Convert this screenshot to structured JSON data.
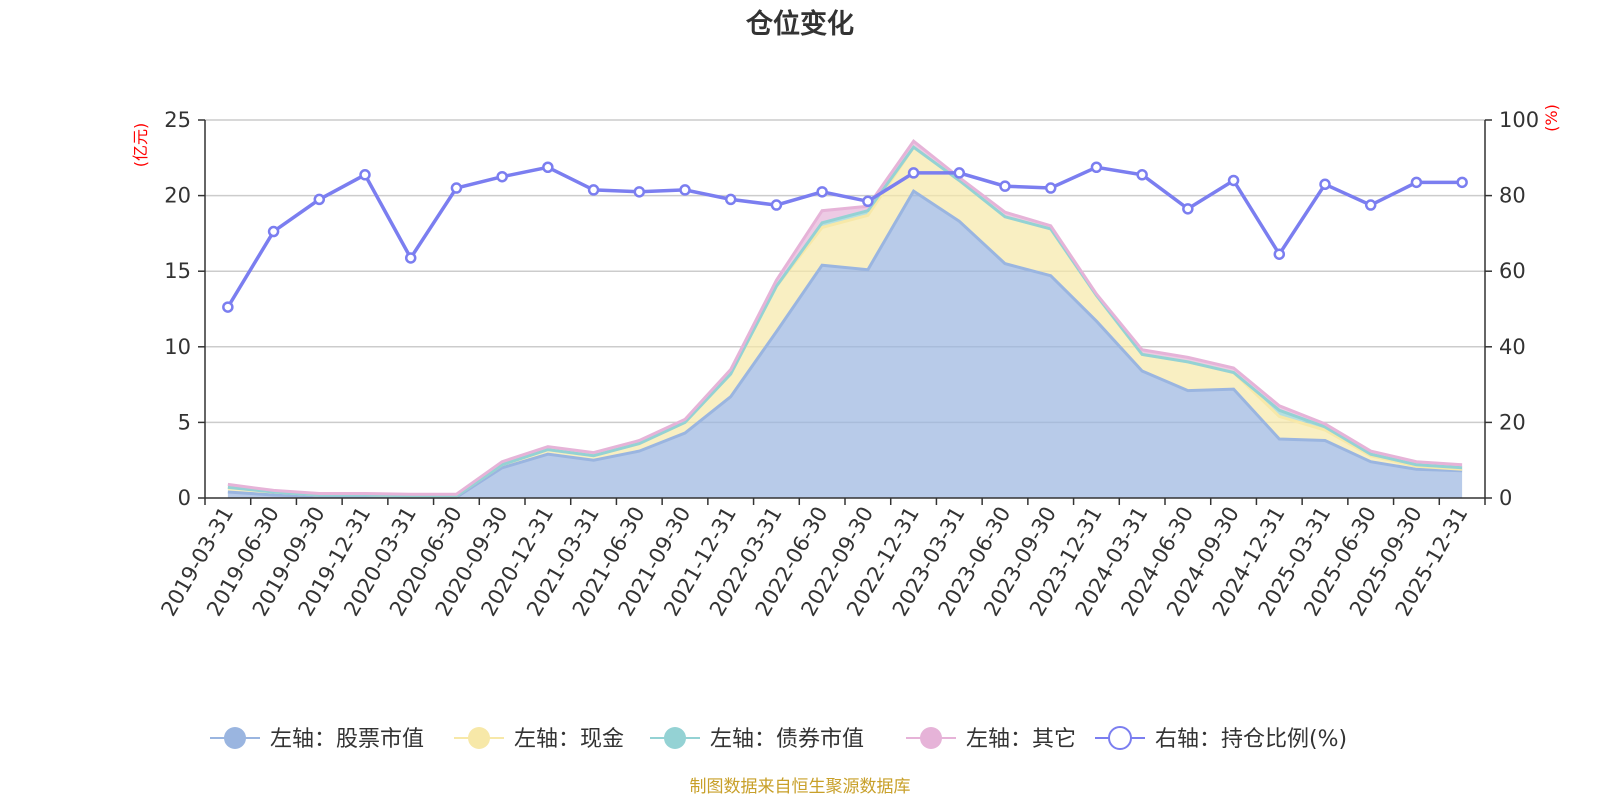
{
  "chart_data": {
    "type": "area",
    "title": "仓位变化",
    "left_axis_unit": "(亿元)",
    "right_axis_unit": "(%)",
    "left_ylim": [
      0,
      25
    ],
    "left_ticks": [
      "0",
      "5",
      "10",
      "15",
      "20",
      "25"
    ],
    "right_ylim": [
      0,
      100
    ],
    "right_ticks": [
      "0",
      "20",
      "40",
      "60",
      "80",
      "100"
    ],
    "categories": [
      "2019-03-31",
      "2019-06-30",
      "2019-09-30",
      "2019-12-31",
      "2020-03-31",
      "2020-06-30",
      "2020-09-30",
      "2020-12-31",
      "2021-03-31",
      "2021-06-30",
      "2021-09-30",
      "2021-12-31",
      "2022-03-31",
      "2022-06-30",
      "2022-09-30",
      "2022-12-31",
      "2023-03-31",
      "2023-06-30",
      "2023-09-30",
      "2023-12-31",
      "2024-03-31",
      "2024-06-30",
      "2024-09-30",
      "2024-12-31",
      "2025-03-31",
      "2025-06-30",
      "2025-09-30",
      "2025-12-31"
    ],
    "series": [
      {
        "name": "左轴：股票市值",
        "axis": "left",
        "color": "#9ab5e0",
        "values": [
          0.4,
          0.2,
          0.1,
          0.1,
          0.05,
          0.05,
          2.0,
          2.9,
          2.5,
          3.1,
          4.3,
          6.7,
          11.0,
          15.4,
          15.1,
          20.3,
          18.3,
          15.5,
          14.7,
          11.7,
          8.4,
          7.1,
          7.2,
          3.9,
          3.8,
          2.4,
          1.9,
          1.8
        ]
      },
      {
        "name": "左轴：现金",
        "axis": "left",
        "color": "#f7e8a8",
        "values": [
          0.3,
          0.2,
          0.1,
          0.1,
          0.1,
          0.1,
          0.2,
          0.3,
          0.3,
          0.5,
          0.7,
          1.5,
          3.0,
          2.5,
          3.6,
          2.9,
          2.7,
          3.1,
          3.1,
          1.7,
          1.1,
          1.9,
          1.1,
          1.5,
          0.7,
          0.4,
          0.2,
          0.1
        ]
      },
      {
        "name": "左轴：债券市值",
        "axis": "left",
        "color": "#94d2d4",
        "values": [
          0,
          0,
          0,
          0,
          0,
          0,
          0,
          0,
          0,
          0,
          0,
          0,
          0,
          0.3,
          0.3,
          0,
          0,
          0,
          0,
          0,
          0,
          0,
          0,
          0.4,
          0.2,
          0.1,
          0.1,
          0.1
        ]
      },
      {
        "name": "左轴：其它",
        "axis": "left",
        "color": "#e6b3d8",
        "values": [
          0.2,
          0.1,
          0.1,
          0.1,
          0.1,
          0.1,
          0.2,
          0.2,
          0.2,
          0.2,
          0.2,
          0.3,
          0.4,
          0.8,
          0.3,
          0.4,
          0.2,
          0.3,
          0.2,
          0.1,
          0.3,
          0.3,
          0.3,
          0.3,
          0.2,
          0.2,
          0.2,
          0.2
        ]
      },
      {
        "name": "右轴：持仓比例(%)",
        "axis": "right",
        "color": "#7b7ef0",
        "values": [
          50.5,
          70.5,
          79,
          85.5,
          63.5,
          82,
          85,
          87.5,
          81.5,
          81,
          81.5,
          79,
          77.5,
          81,
          78.5,
          86,
          86,
          82.5,
          82,
          87.5,
          85.5,
          76.5,
          84,
          64.5,
          83,
          77.5,
          83.5,
          83.5
        ]
      }
    ],
    "legend_position": "bottom",
    "grid": true
  },
  "source_note": "制图数据来自恒生聚源数据库"
}
